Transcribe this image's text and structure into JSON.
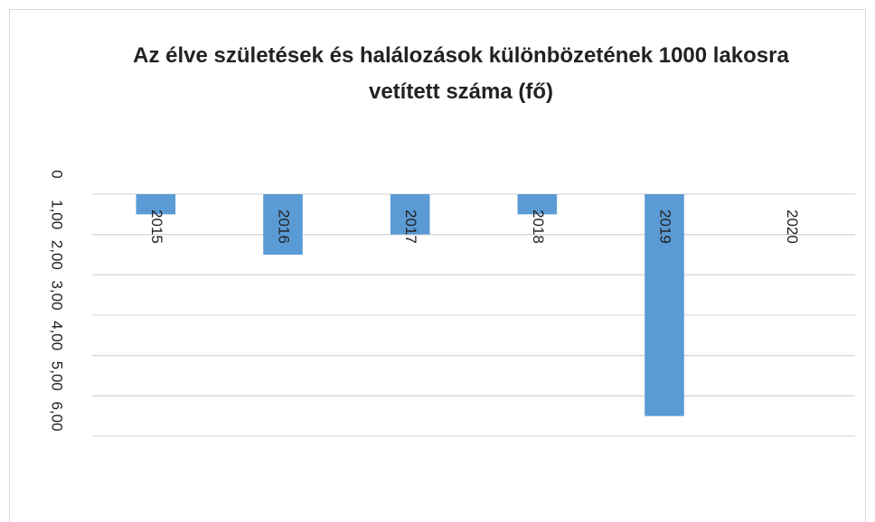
{
  "chart_data": {
    "type": "bar",
    "title": "Az élve születések és halálozások különbözetének 1000 lakosra vetített száma (fő)",
    "categories": [
      "2015",
      "2016",
      "2017",
      "2018",
      "2019",
      "2020"
    ],
    "values": [
      -0.5,
      -1.5,
      -1.0,
      -0.5,
      -5.5,
      0
    ],
    "color": "#5b9bd5",
    "ylim": [
      -6,
      0
    ],
    "yticks": [
      0,
      {
        "value": -1,
        "label": "1,00"
      },
      {
        "value": -2,
        "label": "2,00"
      },
      {
        "value": -3,
        "label": "3,00"
      },
      {
        "value": -4,
        "label": "4,00"
      },
      {
        "value": -5,
        "label": "5,00"
      },
      {
        "value": -6,
        "label": "6,00"
      }
    ],
    "grid": true
  }
}
